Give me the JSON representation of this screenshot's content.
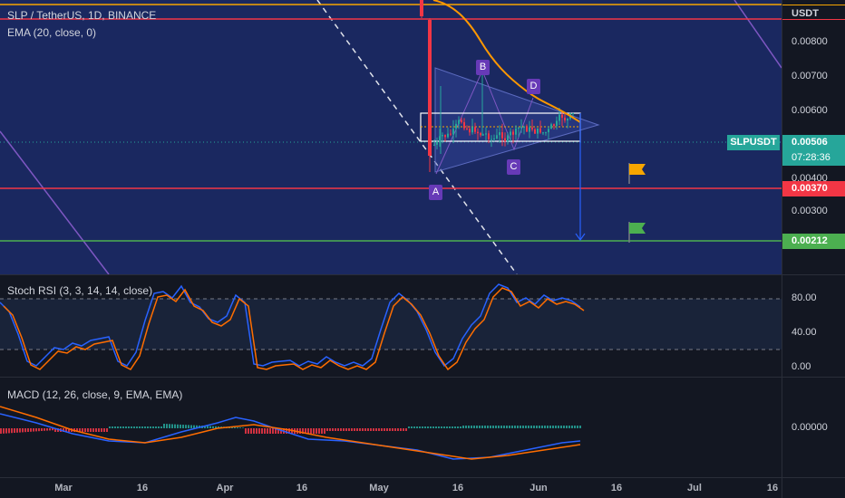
{
  "header": {
    "symbol_line": "SLP / TetherUS, 1D, BINANCE",
    "ema_line": "EMA (20, close, 0)",
    "currency": "USDT"
  },
  "price_axis": {
    "labels": [
      "0.00800",
      "0.00700",
      "0.00600",
      "0.00400",
      "0.00300"
    ],
    "current_symbol": "SLPUSDT",
    "current_price": "0.00506",
    "countdown": "07:28:36",
    "support_1": "0.00370",
    "support_2": "0.00212"
  },
  "pattern_labels": [
    "A",
    "B",
    "C",
    "D"
  ],
  "stoch": {
    "legend": "Stoch RSI (3, 3, 14, 14, close)",
    "labels": [
      "80.00",
      "40.00",
      "0.00"
    ]
  },
  "macd": {
    "legend": "MACD (12, 26, close, 9, EMA, EMA)",
    "label": "0.00000"
  },
  "time_axis": [
    "Mar",
    "16",
    "Apr",
    "16",
    "May",
    "16",
    "Jun",
    "16",
    "Jul",
    "16"
  ],
  "colors": {
    "background_main": "#1a2860",
    "resistance_line": "#f7a600",
    "support_red": "#f23645",
    "support_green": "#4caf50",
    "ema": "#ff9800",
    "current_price": "#26a69a",
    "pattern": "#673ab7",
    "target_arrow": "#2962ff",
    "stoch_k": "#2962ff",
    "stoch_d": "#ff6d00"
  }
}
